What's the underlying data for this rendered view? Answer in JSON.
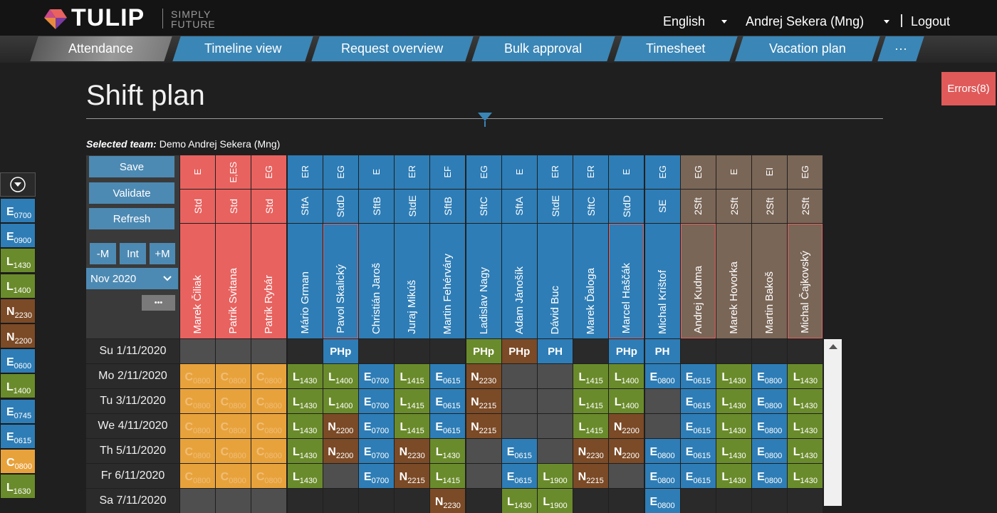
{
  "header": {
    "logo": "TULIP",
    "tagline": [
      "SIMPLY",
      "FUTURE"
    ],
    "language": "English",
    "user": "Andrej Sekera (Mng)",
    "logout": "Logout"
  },
  "tabs": [
    "Attendance",
    "Timeline view",
    "Request overview",
    "Bulk approval",
    "Timesheet",
    "Vacation plan",
    "···"
  ],
  "active_tab": 0,
  "title": "Shift plan",
  "errors": "Errors(8)",
  "team": {
    "label": "Selected team:",
    "name": "Demo Andrej Sekera (Mng)"
  },
  "buttons": {
    "save": "Save",
    "validate": "Validate",
    "refresh": "Refresh",
    "prev": "-M",
    "int": "Int",
    "next": "+M",
    "month": "Nov 2020",
    "more": "•••"
  },
  "colors": {
    "red": "#e8625f",
    "blue": "#2e7db6",
    "green": "#6a8b2b",
    "brown": "#7b4a26",
    "taupe": "#7a6657",
    "orange": "#e8a23c",
    "gray": "#4f4f4f",
    "dark": "#2a2a2a"
  },
  "shift_palette": [
    {
      "code": "E0700",
      "color": "blue"
    },
    {
      "code": "E0900",
      "color": "blue"
    },
    {
      "code": "L1430",
      "color": "green"
    },
    {
      "code": "L1400",
      "color": "green"
    },
    {
      "code": "N2230",
      "color": "brown"
    },
    {
      "code": "N2200",
      "color": "brown"
    },
    {
      "code": "E0600",
      "color": "blue"
    },
    {
      "code": "L1400",
      "color": "green"
    },
    {
      "code": "E0745",
      "color": "blue"
    },
    {
      "code": "E0615",
      "color": "blue"
    },
    {
      "code": "C0800",
      "color": "orange"
    },
    {
      "code": "L1630",
      "color": "green"
    }
  ],
  "columns": [
    {
      "group": "E",
      "type": "Std",
      "name": "Marek Čiliak",
      "color": "red",
      "flagged": false
    },
    {
      "group": "E,ES",
      "type": "Std",
      "name": "Patrik Svitana",
      "color": "red",
      "flagged": false
    },
    {
      "group": "EG",
      "type": "Std",
      "name": "Patrik Rybár",
      "color": "red",
      "flagged": false
    },
    {
      "group": "ER",
      "type": "SftA",
      "name": "Mário Grman",
      "color": "blue",
      "flagged": false
    },
    {
      "group": "EG",
      "type": "StdD",
      "name": "Pavol Skalický",
      "color": "blue",
      "flagged": true
    },
    {
      "group": "E",
      "type": "SftB",
      "name": "Christián Jaroš",
      "color": "blue",
      "flagged": false
    },
    {
      "group": "ER",
      "type": "StdE",
      "name": "Juraj Mikúš",
      "color": "blue",
      "flagged": false
    },
    {
      "group": "EF",
      "type": "SftB",
      "name": "Martin Fehérváry",
      "color": "blue",
      "flagged": false
    },
    {
      "group": "EG",
      "type": "SftC",
      "name": "Ladislav Nagy",
      "color": "blue",
      "flagged": false
    },
    {
      "group": "E",
      "type": "SftA",
      "name": "Adam Jánošík",
      "color": "blue",
      "flagged": false
    },
    {
      "group": "ER",
      "type": "StdE",
      "name": "Dávid Buc",
      "color": "blue",
      "flagged": false
    },
    {
      "group": "ER",
      "type": "SftC",
      "name": "Marek Ďaloga",
      "color": "blue",
      "flagged": false
    },
    {
      "group": "E",
      "type": "StdD",
      "name": "Marcel Haščák",
      "color": "blue",
      "flagged": true
    },
    {
      "group": "EG",
      "type": "SE",
      "name": "Michal Krištof",
      "color": "blue",
      "flagged": false
    },
    {
      "group": "EG",
      "type": "2Sft",
      "name": "Andrej Kudma",
      "color": "taupe",
      "flagged": true
    },
    {
      "group": "E",
      "type": "2Sft",
      "name": "Marek Hovorka",
      "color": "taupe",
      "flagged": false
    },
    {
      "group": "EI",
      "type": "2Sft",
      "name": "Martin Bakoš",
      "color": "taupe",
      "flagged": false
    },
    {
      "group": "EG",
      "type": "2Sft",
      "name": "Michal Čajkovský",
      "color": "taupe",
      "flagged": true
    }
  ],
  "rows": [
    {
      "date": "Su 1/11/2020",
      "cells": [
        null,
        null,
        null,
        null,
        "PHp",
        null,
        null,
        null,
        "PHp",
        "PHp",
        "PH",
        null,
        "PHp",
        "PH",
        null,
        null,
        null,
        null
      ],
      "colors": [
        "gray",
        "gray",
        "gray",
        "dark",
        "blue",
        "dark",
        "dark",
        "dark",
        "green",
        "brown",
        "blue",
        "dark",
        "blue",
        "blue",
        "dark",
        "dark",
        "dark",
        "dark"
      ]
    },
    {
      "date": "Mo 2/11/2020",
      "cells": [
        "C0800",
        "C0800",
        "C0800",
        "L1430",
        "L1400",
        "E0700",
        "L1415",
        "E0615",
        "N2230",
        null,
        null,
        "L1415",
        "L1400",
        "E0800",
        "E0615",
        "L1430",
        "E0800",
        "L1430"
      ],
      "colors": [
        "orange",
        "orange",
        "orange",
        "green",
        "green",
        "blue",
        "green",
        "blue",
        "brown",
        "gray",
        "gray",
        "green",
        "green",
        "blue",
        "blue",
        "green",
        "blue",
        "green"
      ]
    },
    {
      "date": "Tu 3/11/2020",
      "cells": [
        "C0800",
        "C0800",
        "C0800",
        "L1430",
        "L1400",
        "E0700",
        "L1415",
        "E0615",
        "N2215",
        null,
        null,
        "L1415",
        "L1400",
        null,
        "E0615",
        "L1430",
        "E0800",
        "L1430"
      ],
      "colors": [
        "orange",
        "orange",
        "orange",
        "green",
        "green",
        "blue",
        "green",
        "blue",
        "brown",
        "gray",
        "gray",
        "green",
        "green",
        "gray",
        "blue",
        "green",
        "blue",
        "green"
      ]
    },
    {
      "date": "We 4/11/2020",
      "cells": [
        "C0800",
        "C0800",
        "C0800",
        "L1430",
        "N2200",
        "E0700",
        "L1415",
        "E0615",
        "N2215",
        null,
        null,
        "L1415",
        "N2200",
        null,
        "E0615",
        "L1430",
        "E0800",
        "L1430"
      ],
      "colors": [
        "orange",
        "orange",
        "orange",
        "green",
        "brown",
        "blue",
        "green",
        "blue",
        "brown",
        "gray",
        "gray",
        "green",
        "brown",
        "gray",
        "blue",
        "green",
        "blue",
        "green"
      ]
    },
    {
      "date": "Th 5/11/2020",
      "cells": [
        "C0800",
        "C0800",
        "C0800",
        "L1430",
        "N2200",
        "E0700",
        "N2230",
        "L1430",
        null,
        "E0615",
        null,
        "N2230",
        "N2200",
        "E0800",
        "E0615",
        "L1430",
        "E0800",
        "L1430"
      ],
      "colors": [
        "orange",
        "orange",
        "orange",
        "green",
        "brown",
        "blue",
        "brown",
        "green",
        "gray",
        "blue",
        "gray",
        "brown",
        "brown",
        "blue",
        "blue",
        "green",
        "blue",
        "green"
      ]
    },
    {
      "date": "Fr 6/11/2020",
      "cells": [
        "C0800",
        "C0800",
        "C0800",
        "L1430",
        null,
        "E0700",
        "N2215",
        "L1415",
        null,
        "E0615",
        "L1900",
        "N2215",
        null,
        "E0800",
        "E0615",
        "L1430",
        "E0800",
        "L1430"
      ],
      "colors": [
        "orange",
        "orange",
        "orange",
        "green",
        "gray",
        "blue",
        "brown",
        "green",
        "gray",
        "blue",
        "green",
        "brown",
        "gray",
        "blue",
        "blue",
        "green",
        "blue",
        "green"
      ]
    },
    {
      "date": "Sa 7/11/2020",
      "cells": [
        null,
        null,
        null,
        null,
        null,
        null,
        null,
        "N2230",
        null,
        "L1430",
        "L1900",
        null,
        null,
        "E0800",
        null,
        null,
        null,
        null
      ],
      "colors": [
        "gray",
        "gray",
        "gray",
        "dark",
        "dark",
        "dark",
        "dark",
        "brown",
        "dark",
        "green",
        "green",
        "dark",
        "dark",
        "blue",
        "dark",
        "dark",
        "dark",
        "dark"
      ]
    }
  ]
}
